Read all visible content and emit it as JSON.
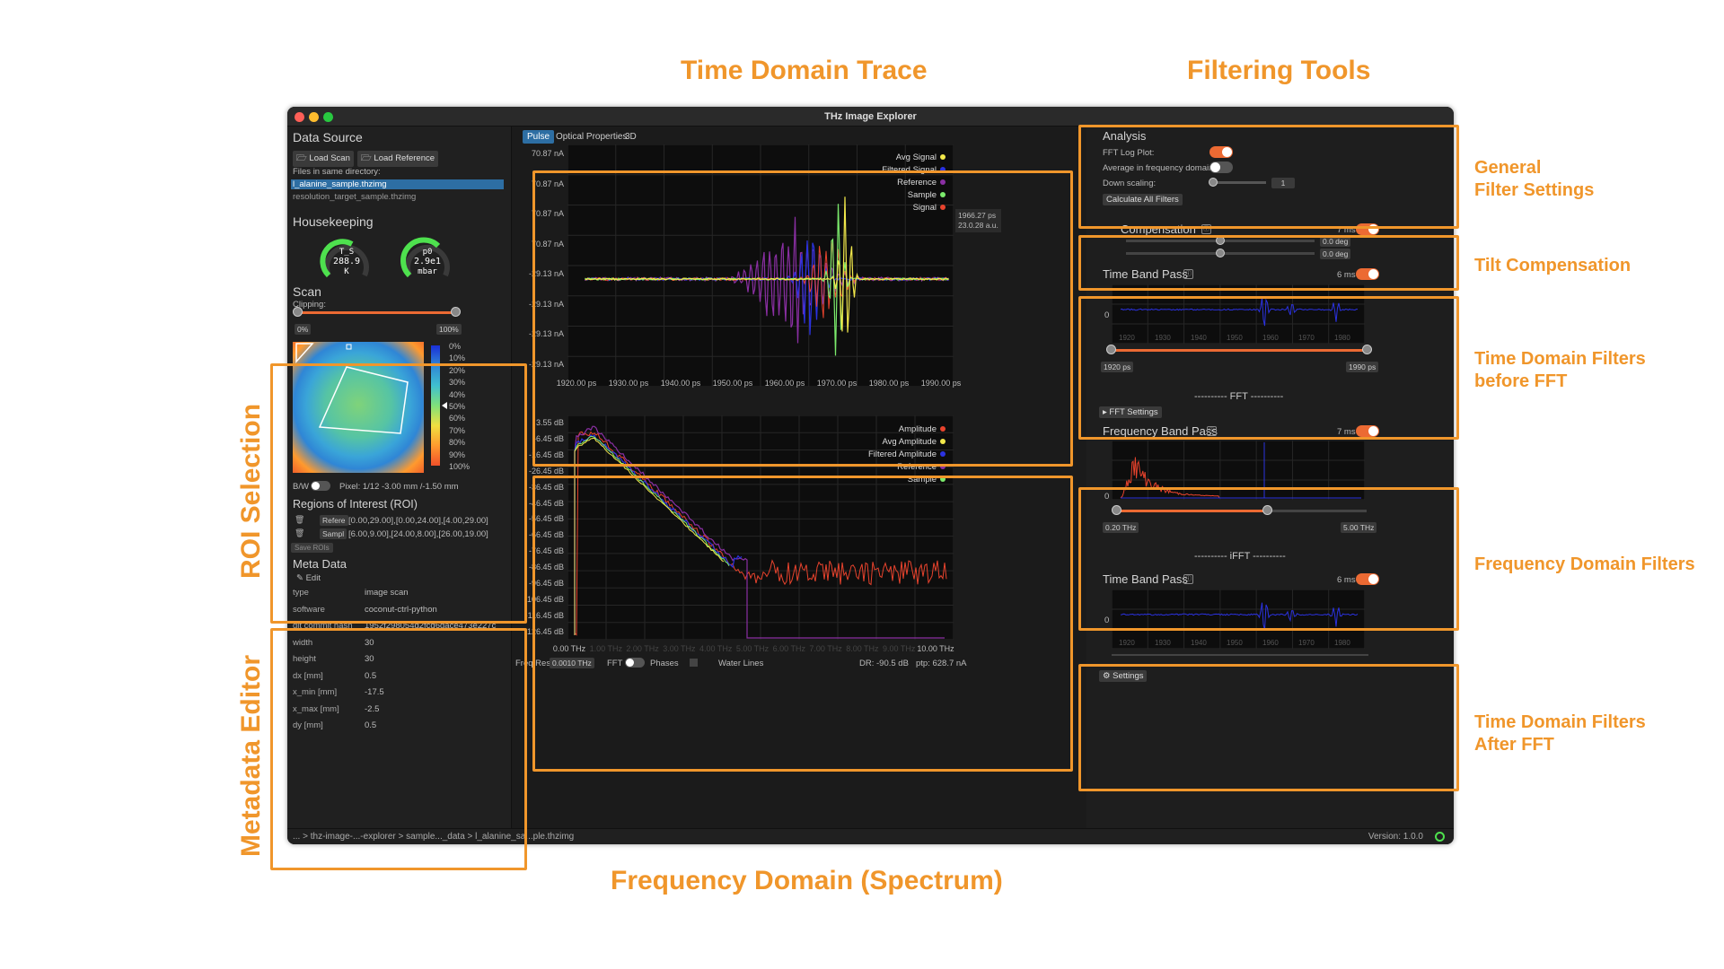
{
  "annotations": {
    "time_domain_trace": "Time Domain Trace",
    "filtering_tools": "Filtering Tools",
    "general_filter_settings": [
      "General",
      "Filter Settings"
    ],
    "tilt_compensation": "Tilt Compensation",
    "time_domain_before": [
      "Time Domain Filters",
      "before FFT"
    ],
    "frequency_domain_filters": "Frequency Domain Filters",
    "time_domain_after": [
      "Time Domain Filters",
      "After FFT"
    ],
    "roi_selection": "ROI Selection",
    "metadata_editor": "Metadata Editor",
    "frequency_domain_spectrum": "Frequency Domain (Spectrum)"
  },
  "window": {
    "title": "THz Image Explorer"
  },
  "data_source": {
    "title": "Data Source",
    "load_scan": "🗁 Load Scan",
    "load_reference": "🗁 Load Reference",
    "files_label": "Files in same directory:",
    "files": [
      "l_alanine_sample.thzimg",
      "resolution_target_sample.thzimg"
    ]
  },
  "housekeeping": {
    "title": "Housekeeping",
    "gauges": [
      {
        "name": "T_S",
        "value": "288.9",
        "unit": "K",
        "level": 0.55
      },
      {
        "name": "p0",
        "value": "2.9e1",
        "unit": "mbar",
        "level": 0.65
      }
    ]
  },
  "scan": {
    "title": "Scan",
    "clipping_label": "Clipping:",
    "min": "0%",
    "max": "100%",
    "colorbar_labels": [
      "0%",
      "10%",
      "20%",
      "30%",
      "40%",
      "50%",
      "60%",
      "70%",
      "80%",
      "90%",
      "100%"
    ],
    "bw_label": "B/W",
    "pixel_info": "Pixel: 1/12   -3.00 mm /-1.50 mm"
  },
  "roi": {
    "title": "Regions of Interest (ROI)",
    "rows": [
      {
        "name": "Refere",
        "coords": "[0.00,29.00],[0.00,24.00],[4.00,29.00]"
      },
      {
        "name": "Sampl",
        "coords": "[6.00,9.00],[24.00,8.00],[26.00,19.00]"
      }
    ],
    "save_label": "Save ROIs"
  },
  "meta": {
    "title": "Meta Data",
    "edit_label": "✎ Edit",
    "rows": [
      {
        "k": "type",
        "v": "image scan"
      },
      {
        "k": "software",
        "v": "coconut-ctrl-python"
      },
      {
        "k": "git commit hash",
        "v": "1952f298054d2fcd6dace473e227c"
      },
      {
        "k": "width",
        "v": "30"
      },
      {
        "k": "height",
        "v": "30"
      },
      {
        "k": "dx [mm]",
        "v": "0.5"
      },
      {
        "k": "x_min [mm]",
        "v": "-17.5"
      },
      {
        "k": "x_max [mm]",
        "v": "-2.5"
      },
      {
        "k": "dy [mm]",
        "v": "0.5"
      }
    ]
  },
  "statusbar": {
    "path": "... > thz-image-...-explorer > sample..._data > l_alanine_sa...ple.thzimg",
    "version": "Version: 1.0.0"
  },
  "tabs": [
    "Pulse",
    "Optical Properties",
    "3D"
  ],
  "time_plot": {
    "y_ticks": [
      "70.87 nA",
      "70.87 nA",
      "70.87 nA",
      "70.87 nA",
      "-29.13 nA",
      "-29.13 nA",
      "-29.13 nA",
      "-29.13 nA"
    ],
    "x_ticks": [
      "1920.00 ps",
      "1930.00 ps",
      "1940.00 ps",
      "1950.00 ps",
      "1960.00 ps",
      "1970.00 ps",
      "1980.00 ps",
      "1990.00 ps"
    ],
    "legend": [
      {
        "name": "Avg Signal",
        "color": "#f2e84b"
      },
      {
        "name": "Filtered Signal",
        "color": "#2b32e0"
      },
      {
        "name": "Reference",
        "color": "#8a2fa3"
      },
      {
        "name": "Sample",
        "color": "#7bea6c"
      },
      {
        "name": "Signal",
        "color": "#e8432d"
      }
    ],
    "cursor_readout": [
      "1966.27 ps",
      "23.0.28 a.u."
    ]
  },
  "spectrum_plot": {
    "y_ticks": [
      "3.55 dB",
      "-6.45 dB",
      "-16.45 dB",
      "-26.45 dB",
      "-36.45 dB",
      "-46.45 dB",
      "-56.45 dB",
      "-66.45 dB",
      "-76.45 dB",
      "-86.45 dB",
      "-96.45 dB",
      "-106.45 dB",
      "-116.45 dB",
      "-126.45 dB"
    ],
    "x_ticks": [
      "0.00 THz",
      "1.00 THz",
      "2.00 THz",
      "3.00 THz",
      "4.00 THz",
      "5.00 THz",
      "6.00 THz",
      "7.00 THz",
      "8.00 THz",
      "9.00 THz",
      "10.00 THz"
    ],
    "legend": [
      {
        "name": "Amplitude",
        "color": "#e8432d"
      },
      {
        "name": "Avg Amplitude",
        "color": "#f2e84b"
      },
      {
        "name": "Filtered Amplitude",
        "color": "#2b32e0"
      },
      {
        "name": "Reference",
        "color": "#8a2fa3"
      },
      {
        "name": "Sample",
        "color": "#7bea6c"
      }
    ]
  },
  "bottom_controls": {
    "freq_res_label": "Freq Res",
    "freq_res_value": "0.0010 THz",
    "fft_label": "FFT",
    "phases_label": "Phases",
    "water_lines_label": "Water Lines",
    "dr": "DR: -90.5 dB",
    "ptp": "ptp: 628.7 nA"
  },
  "analysis": {
    "title": "Analysis",
    "fft_log_plot": "FFT Log Plot:",
    "avg_freq": "Average in frequency domain:",
    "down_scaling": "Down scaling:",
    "down_scaling_value": "1",
    "calc_all": "Calculate All Filters"
  },
  "tilt": {
    "title": "Compensation",
    "time": "7 ms",
    "readouts": [
      "0.0 deg",
      "0.0 deg"
    ]
  },
  "tdbp1": {
    "title": "Time Band Pass",
    "time": "6 ms",
    "zero": "0",
    "axis": [
      "1920",
      "1930",
      "1940",
      "1950",
      "1960",
      "1970",
      "1980"
    ],
    "min": "1920 ps",
    "max": "1990 ps"
  },
  "fft_divider": "---------- FFT ----------",
  "fft_settings": "▸ FFT Settings",
  "fbp": {
    "title": "Frequency Band Pass",
    "time": "7 ms",
    "zero": "0",
    "min": "0.20 THz",
    "max": "5.00 THz"
  },
  "ifft_divider": "---------- iFFT ----------",
  "tdbp2": {
    "title": "Time Band Pass",
    "time": "6 ms",
    "zero": "0",
    "axis": [
      "1920",
      "1930",
      "1940",
      "1950",
      "1960",
      "1970",
      "1980"
    ]
  },
  "settings": "⚙ Settings"
}
